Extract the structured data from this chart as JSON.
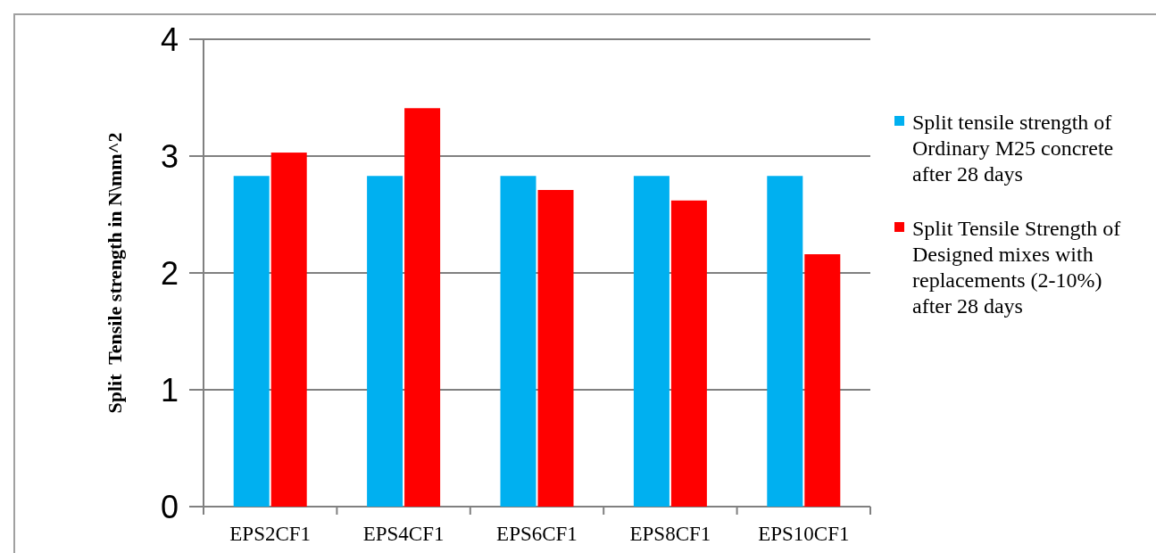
{
  "chart_data": {
    "type": "bar",
    "ylabel": "Split  Tensile strength in N\\mm^2",
    "categories": [
      "EPS2CF1",
      "EPS4CF1",
      "EPS6CF1",
      "EPS8CF1",
      "EPS10CF1"
    ],
    "series": [
      {
        "name": "Split tensile strength of Ordinary M25 concrete after 28 days",
        "color": "#00b0f0",
        "values": [
          2.83,
          2.83,
          2.83,
          2.83,
          2.83
        ]
      },
      {
        "name": " Split Tensile Strength of Designed mixes with replacements (2-10%) after 28 days",
        "color": "#ff0000",
        "values": [
          3.03,
          3.41,
          2.71,
          2.62,
          2.16
        ]
      }
    ],
    "ylim": [
      0,
      4
    ],
    "yticks": [
      0,
      1,
      2,
      3,
      4
    ],
    "grid": "y",
    "legend": "right"
  }
}
